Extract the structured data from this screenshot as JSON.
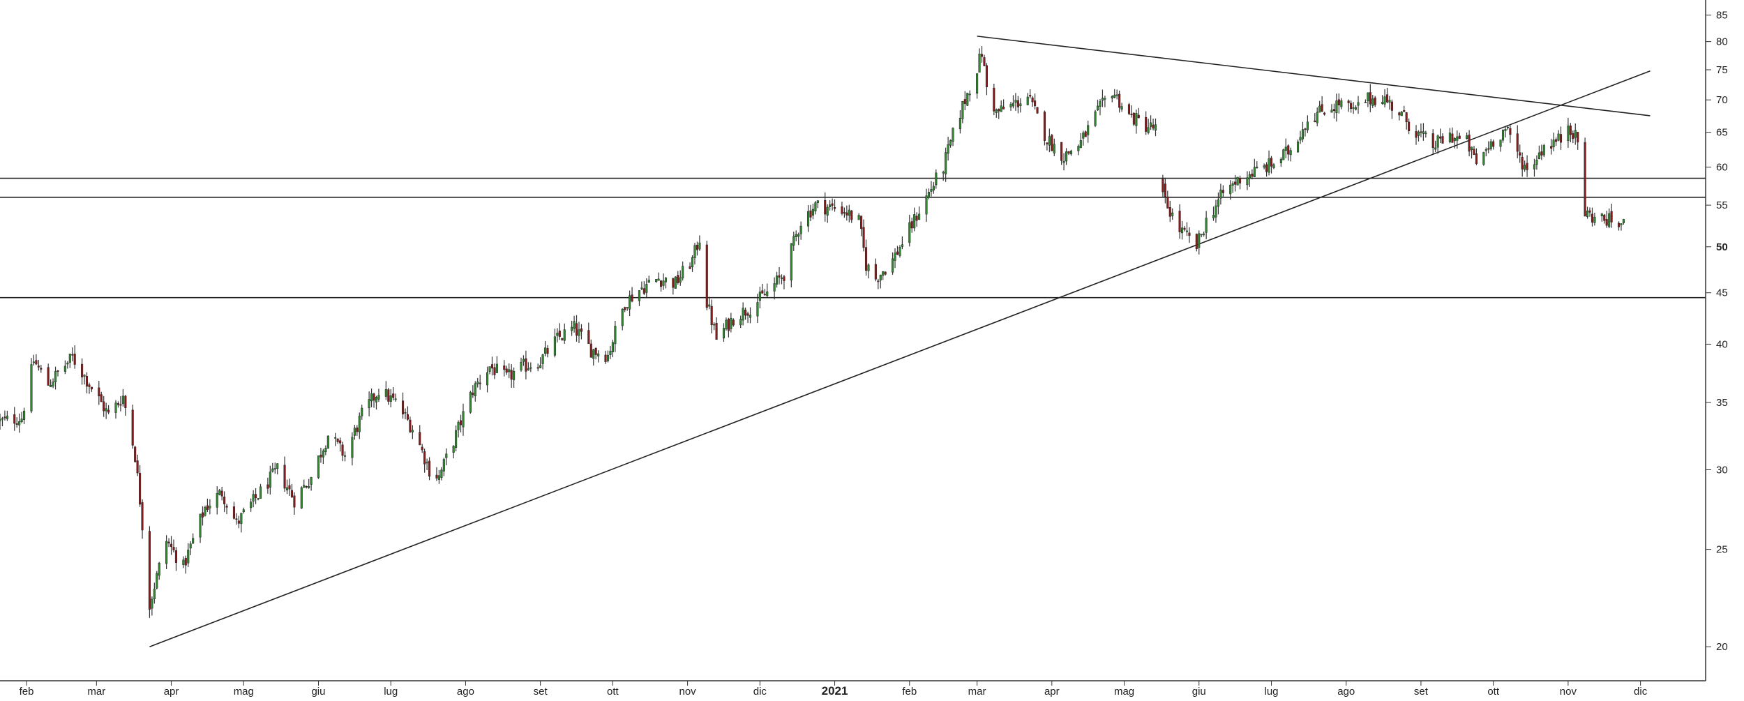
{
  "chart_data": {
    "type": "candlestick",
    "scale": "log",
    "grid": false,
    "ylim": [
      18.5,
      88
    ],
    "xlim": [
      "2020-01-21",
      "2021-12-28"
    ],
    "y_ticks": [
      {
        "value": 85,
        "label": "85",
        "bold": false
      },
      {
        "value": 80,
        "label": "80",
        "bold": false
      },
      {
        "value": 75,
        "label": "75",
        "bold": false
      },
      {
        "value": 70,
        "label": "70",
        "bold": false
      },
      {
        "value": 65,
        "label": "65",
        "bold": false
      },
      {
        "value": 60,
        "label": "60",
        "bold": false
      },
      {
        "value": 55,
        "label": "55",
        "bold": false
      },
      {
        "value": 50,
        "label": "50",
        "bold": true
      },
      {
        "value": 45,
        "label": "45",
        "bold": false
      },
      {
        "value": 40,
        "label": "40",
        "bold": false
      },
      {
        "value": 35,
        "label": "35",
        "bold": false
      },
      {
        "value": 30,
        "label": "30",
        "bold": false
      },
      {
        "value": 25,
        "label": "25",
        "bold": false
      },
      {
        "value": 20,
        "label": "20",
        "bold": false
      }
    ],
    "x_ticks": [
      {
        "date": "2020-02-01",
        "label": "feb",
        "bold": false
      },
      {
        "date": "2020-03-01",
        "label": "mar",
        "bold": false
      },
      {
        "date": "2020-04-01",
        "label": "apr",
        "bold": false
      },
      {
        "date": "2020-05-01",
        "label": "mag",
        "bold": false
      },
      {
        "date": "2020-06-01",
        "label": "giu",
        "bold": false
      },
      {
        "date": "2020-07-01",
        "label": "lug",
        "bold": false
      },
      {
        "date": "2020-08-01",
        "label": "ago",
        "bold": false
      },
      {
        "date": "2020-09-01",
        "label": "set",
        "bold": false
      },
      {
        "date": "2020-10-01",
        "label": "ott",
        "bold": false
      },
      {
        "date": "2020-11-01",
        "label": "nov",
        "bold": false
      },
      {
        "date": "2020-12-01",
        "label": "dic",
        "bold": false
      },
      {
        "date": "2021-01-01",
        "label": "2021",
        "bold": true
      },
      {
        "date": "2021-02-01",
        "label": "feb",
        "bold": false
      },
      {
        "date": "2021-03-01",
        "label": "mar",
        "bold": false
      },
      {
        "date": "2021-04-01",
        "label": "apr",
        "bold": false
      },
      {
        "date": "2021-05-01",
        "label": "mag",
        "bold": false
      },
      {
        "date": "2021-06-01",
        "label": "giu",
        "bold": false
      },
      {
        "date": "2021-07-01",
        "label": "lug",
        "bold": false
      },
      {
        "date": "2021-08-01",
        "label": "ago",
        "bold": false
      },
      {
        "date": "2021-09-01",
        "label": "set",
        "bold": false
      },
      {
        "date": "2021-10-01",
        "label": "ott",
        "bold": false
      },
      {
        "date": "2021-11-01",
        "label": "nov",
        "bold": false
      },
      {
        "date": "2021-12-01",
        "label": "dic",
        "bold": false
      }
    ],
    "price_path": [
      [
        "2020-01-21",
        33.5
      ],
      [
        "2020-01-30",
        33.8
      ],
      [
        "2020-02-04",
        38.5
      ],
      [
        "2020-02-10",
        36.5
      ],
      [
        "2020-02-20",
        38.8
      ],
      [
        "2020-02-28",
        36.2
      ],
      [
        "2020-03-06",
        34.0
      ],
      [
        "2020-03-12",
        35.5
      ],
      [
        "2020-03-17",
        31.0
      ],
      [
        "2020-03-20",
        26.5
      ],
      [
        "2020-03-23",
        22.0
      ],
      [
        "2020-03-30",
        25.5
      ],
      [
        "2020-04-06",
        24.0
      ],
      [
        "2020-04-15",
        27.5
      ],
      [
        "2020-04-22",
        28.5
      ],
      [
        "2020-04-28",
        26.5
      ],
      [
        "2020-05-08",
        28.5
      ],
      [
        "2020-05-15",
        30.0
      ],
      [
        "2020-05-22",
        28.0
      ],
      [
        "2020-05-29",
        29.5
      ],
      [
        "2020-06-05",
        32.5
      ],
      [
        "2020-06-12",
        31.0
      ],
      [
        "2020-06-19",
        34.0
      ],
      [
        "2020-06-26",
        36.0
      ],
      [
        "2020-07-03",
        35.0
      ],
      [
        "2020-07-10",
        33.0
      ],
      [
        "2020-07-17",
        30.0
      ],
      [
        "2020-07-21",
        29.5
      ],
      [
        "2020-07-28",
        32.5
      ],
      [
        "2020-08-04",
        36.0
      ],
      [
        "2020-08-11",
        38.0
      ],
      [
        "2020-08-18",
        37.0
      ],
      [
        "2020-08-25",
        38.0
      ],
      [
        "2020-09-01",
        38.5
      ],
      [
        "2020-09-08",
        40.5
      ],
      [
        "2020-09-15",
        41.5
      ],
      [
        "2020-09-22",
        39.5
      ],
      [
        "2020-09-29",
        39.0
      ],
      [
        "2020-10-06",
        44.0
      ],
      [
        "2020-10-13",
        45.5
      ],
      [
        "2020-10-20",
        46.5
      ],
      [
        "2020-10-27",
        46.0
      ],
      [
        "2020-11-03",
        48.5
      ],
      [
        "2020-11-06",
        51.0
      ],
      [
        "2020-11-09",
        44.0
      ],
      [
        "2020-11-13",
        40.5
      ],
      [
        "2020-11-20",
        42.5
      ],
      [
        "2020-11-27",
        43.5
      ],
      [
        "2020-12-04",
        45.0
      ],
      [
        "2020-12-11",
        47.0
      ],
      [
        "2020-12-18",
        53.0
      ],
      [
        "2020-12-24",
        55.0
      ],
      [
        "2021-01-04",
        54.5
      ],
      [
        "2021-01-11",
        53.0
      ],
      [
        "2021-01-14",
        48.0
      ],
      [
        "2021-01-18",
        46.5
      ],
      [
        "2021-01-25",
        48.5
      ],
      [
        "2021-02-01",
        52.0
      ],
      [
        "2021-02-08",
        56.0
      ],
      [
        "2021-02-15",
        60.0
      ],
      [
        "2021-02-22",
        68.0
      ],
      [
        "2021-02-28",
        74.0
      ],
      [
        "2021-03-03",
        78.0
      ],
      [
        "2021-03-05",
        72.0
      ],
      [
        "2021-03-09",
        68.0
      ],
      [
        "2021-03-15",
        69.0
      ],
      [
        "2021-03-22",
        70.5
      ],
      [
        "2021-03-30",
        64.0
      ],
      [
        "2021-04-06",
        61.5
      ],
      [
        "2021-04-13",
        63.5
      ],
      [
        "2021-04-20",
        68.0
      ],
      [
        "2021-04-26",
        71.5
      ],
      [
        "2021-05-03",
        67.5
      ],
      [
        "2021-05-10",
        66.0
      ],
      [
        "2021-05-14",
        65.5
      ],
      [
        "2021-05-17",
        56.0
      ],
      [
        "2021-05-24",
        52.0
      ],
      [
        "2021-05-31",
        50.0
      ],
      [
        "2021-06-04",
        53.0
      ],
      [
        "2021-06-11",
        56.5
      ],
      [
        "2021-06-18",
        58.5
      ],
      [
        "2021-06-25",
        59.5
      ],
      [
        "2021-07-02",
        60.5
      ],
      [
        "2021-07-09",
        62.5
      ],
      [
        "2021-07-16",
        67.0
      ],
      [
        "2021-07-23",
        68.5
      ],
      [
        "2021-07-30",
        69.5
      ],
      [
        "2021-08-04",
        68.0
      ],
      [
        "2021-08-09",
        70.0
      ],
      [
        "2021-08-16",
        70.5
      ],
      [
        "2021-08-23",
        68.0
      ],
      [
        "2021-08-30",
        65.0
      ],
      [
        "2021-09-06",
        63.0
      ],
      [
        "2021-09-13",
        64.5
      ],
      [
        "2021-09-20",
        63.5
      ],
      [
        "2021-09-24",
        60.5
      ],
      [
        "2021-09-30",
        63.5
      ],
      [
        "2021-10-06",
        65.5
      ],
      [
        "2021-10-11",
        62.0
      ],
      [
        "2021-10-15",
        59.5
      ],
      [
        "2021-10-22",
        63.0
      ],
      [
        "2021-10-29",
        64.0
      ],
      [
        "2021-11-01",
        66.5
      ],
      [
        "2021-11-05",
        63.5
      ],
      [
        "2021-11-08",
        54.0
      ],
      [
        "2021-11-12",
        53.5
      ],
      [
        "2021-11-19",
        53.0
      ],
      [
        "2021-11-24",
        52.5
      ]
    ],
    "gaps": [
      [
        "2021-05-14",
        "2021-05-17"
      ]
    ],
    "horizontal_levels": [
      58.5,
      56.0,
      44.5
    ],
    "trendlines": [
      {
        "from": [
          "2020-03-23",
          20.0
        ],
        "to": [
          "2021-12-05",
          74.8
        ]
      },
      {
        "from": [
          "2021-03-01",
          81.0
        ],
        "to": [
          "2021-12-05",
          67.5
        ]
      }
    ],
    "candle_colors": {
      "up": "#2f8a2f",
      "down": "#8b1a1a",
      "wick": "#333333"
    }
  }
}
